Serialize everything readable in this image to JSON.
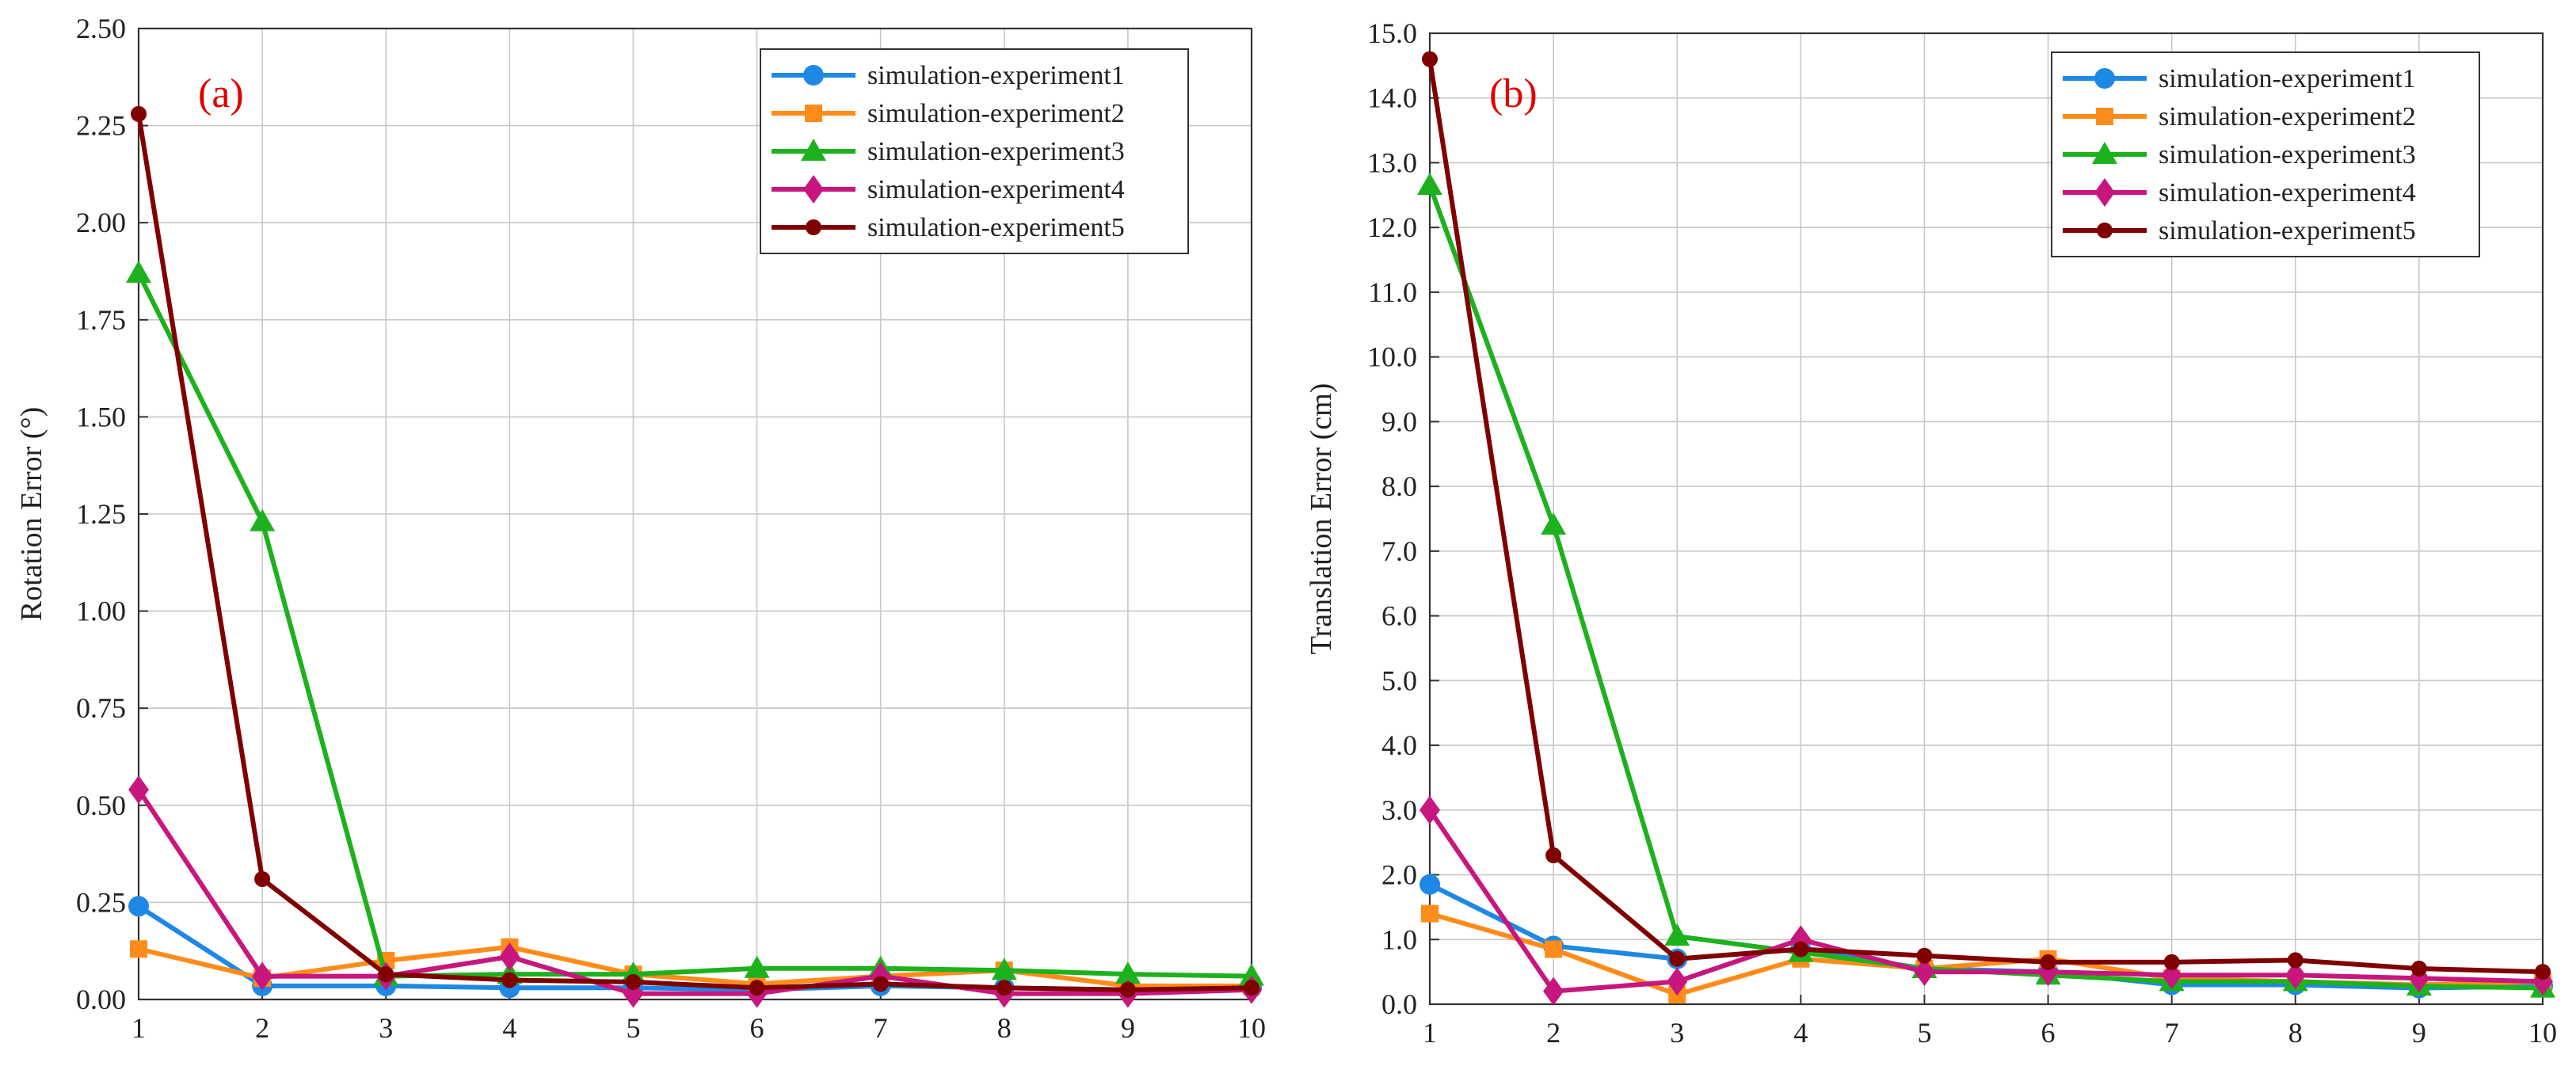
{
  "chart_data": [
    {
      "type": "line",
      "panel_label": "(a)",
      "xlabel": "",
      "ylabel": "Rotation Error (°)",
      "x": [
        1,
        2,
        3,
        4,
        5,
        6,
        7,
        8,
        9,
        10
      ],
      "xlim": [
        1,
        10
      ],
      "ylim": [
        0,
        2.5
      ],
      "xticks": [
        "1",
        "2",
        "3",
        "4",
        "5",
        "6",
        "7",
        "8",
        "9",
        "10"
      ],
      "yticks": [
        "0.00",
        "0.25",
        "0.50",
        "0.75",
        "1.00",
        "1.25",
        "1.50",
        "1.75",
        "2.00",
        "2.25",
        "2.50"
      ],
      "grid": true,
      "legend_position": "top-right",
      "series": [
        {
          "name": "simulation-experiment1",
          "color": "#1e88e5",
          "marker": "circle",
          "values": [
            0.24,
            0.035,
            0.035,
            0.03,
            0.03,
            0.025,
            0.035,
            0.03,
            0.025,
            0.03
          ]
        },
        {
          "name": "simulation-experiment2",
          "color": "#ff8c1a",
          "marker": "square",
          "values": [
            0.13,
            0.055,
            0.1,
            0.135,
            0.065,
            0.04,
            0.06,
            0.075,
            0.035,
            0.035
          ]
        },
        {
          "name": "simulation-experiment3",
          "color": "#1db21d",
          "marker": "triangle",
          "values": [
            1.87,
            1.23,
            0.06,
            0.065,
            0.065,
            0.08,
            0.08,
            0.075,
            0.065,
            0.06
          ]
        },
        {
          "name": "simulation-experiment4",
          "color": "#c8167f",
          "marker": "diamond",
          "values": [
            0.54,
            0.06,
            0.06,
            0.11,
            0.015,
            0.015,
            0.06,
            0.015,
            0.015,
            0.025
          ]
        },
        {
          "name": "simulation-experiment5",
          "color": "#800000",
          "marker": "circle-small",
          "values": [
            2.28,
            0.31,
            0.065,
            0.05,
            0.045,
            0.03,
            0.04,
            0.03,
            0.025,
            0.03
          ]
        }
      ]
    },
    {
      "type": "line",
      "panel_label": "(b)",
      "xlabel": "",
      "ylabel": "Translation Error (cm)",
      "x": [
        1,
        2,
        3,
        4,
        5,
        6,
        7,
        8,
        9,
        10
      ],
      "xlim": [
        1,
        10
      ],
      "ylim": [
        0,
        15
      ],
      "xticks": [
        "1",
        "2",
        "3",
        "4",
        "5",
        "6",
        "7",
        "8",
        "9",
        "10"
      ],
      "yticks": [
        "0.0",
        "1.0",
        "2.0",
        "3.0",
        "4.0",
        "5.0",
        "6.0",
        "7.0",
        "8.0",
        "9.0",
        "10.0",
        "11.0",
        "12.0",
        "13.0",
        "14.0",
        "15.0"
      ],
      "grid": true,
      "legend_position": "top-right",
      "series": [
        {
          "name": "simulation-experiment1",
          "color": "#1e88e5",
          "marker": "circle",
          "values": [
            1.85,
            0.9,
            0.7,
            0.85,
            0.55,
            0.5,
            0.3,
            0.3,
            0.25,
            0.28
          ]
        },
        {
          "name": "simulation-experiment2",
          "color": "#ff8c1a",
          "marker": "square",
          "values": [
            1.4,
            0.85,
            0.15,
            0.7,
            0.55,
            0.7,
            0.4,
            0.35,
            0.3,
            0.35
          ]
        },
        {
          "name": "simulation-experiment3",
          "color": "#1db21d",
          "marker": "triangle",
          "values": [
            12.65,
            7.4,
            1.05,
            0.8,
            0.55,
            0.45,
            0.35,
            0.35,
            0.28,
            0.25
          ]
        },
        {
          "name": "simulation-experiment4",
          "color": "#c8167f",
          "marker": "diamond",
          "values": [
            3.0,
            0.2,
            0.35,
            1.0,
            0.5,
            0.5,
            0.45,
            0.45,
            0.4,
            0.35
          ]
        },
        {
          "name": "simulation-experiment5",
          "color": "#800000",
          "marker": "circle-small",
          "values": [
            14.6,
            2.3,
            0.7,
            0.85,
            0.75,
            0.65,
            0.65,
            0.68,
            0.55,
            0.5
          ]
        }
      ]
    }
  ]
}
